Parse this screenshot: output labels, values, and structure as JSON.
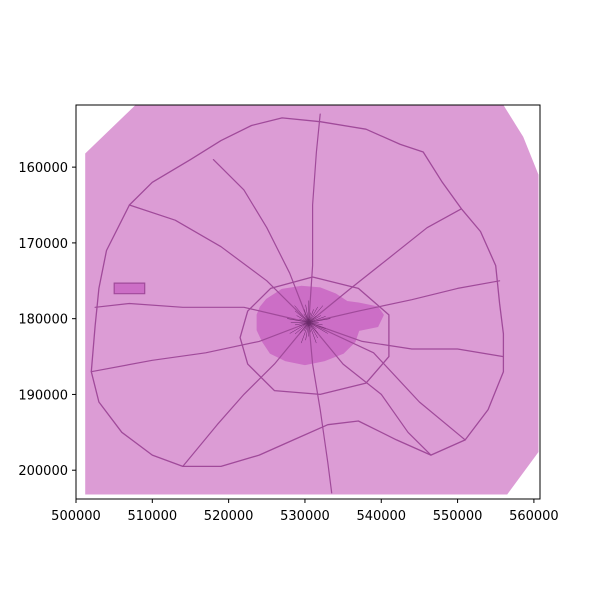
{
  "chart_data": {
    "type": "map",
    "title": "",
    "xlabel": "",
    "ylabel": "",
    "xlim": [
      500000,
      560800
    ],
    "ylim": [
      151800,
      203800
    ],
    "y_inverted": true,
    "grid": false,
    "legend": "none",
    "x_ticks": [
      500000,
      510000,
      520000,
      530000,
      540000,
      550000,
      560000
    ],
    "x_tick_labels": [
      "500000",
      "510000",
      "520000",
      "530000",
      "540000",
      "550000",
      "560000"
    ],
    "y_ticks": [
      160000,
      170000,
      180000,
      190000,
      200000
    ],
    "y_tick_labels": [
      "160000",
      "170000",
      "180000",
      "190000",
      "200000"
    ],
    "colors": {
      "region_fill": "#dc9cd5",
      "urban_core": "#cc6ec6",
      "roads": "#a04a9a",
      "center": "#6a2a6a"
    },
    "layers": [
      {
        "name": "study-area",
        "kind": "polygon",
        "points": [
          [
            501200,
            158200
          ],
          [
            507800,
            151800
          ],
          [
            556000,
            151800
          ],
          [
            558600,
            156000
          ],
          [
            560600,
            161000
          ],
          [
            560600,
            197600
          ],
          [
            556500,
            203200
          ],
          [
            501200,
            203200
          ]
        ]
      },
      {
        "name": "urban-core",
        "kind": "polygon",
        "points": [
          [
            525000,
            177500
          ],
          [
            527000,
            176200
          ],
          [
            529500,
            175800
          ],
          [
            532000,
            176000
          ],
          [
            534000,
            176800
          ],
          [
            535500,
            177800
          ],
          [
            537000,
            178000
          ],
          [
            539500,
            178500
          ],
          [
            540200,
            179500
          ],
          [
            539500,
            181000
          ],
          [
            537000,
            181500
          ],
          [
            536500,
            183000
          ],
          [
            535000,
            184500
          ],
          [
            532500,
            185500
          ],
          [
            530000,
            186000
          ],
          [
            527500,
            185500
          ],
          [
            525500,
            184500
          ],
          [
            524500,
            183000
          ],
          [
            523800,
            181500
          ],
          [
            523800,
            179500
          ],
          [
            524200,
            178500
          ]
        ]
      },
      {
        "name": "orbital-ring",
        "kind": "line",
        "closed": true,
        "points": [
          [
            504000,
            171000
          ],
          [
            507000,
            165000
          ],
          [
            510000,
            162000
          ],
          [
            515000,
            159000
          ],
          [
            519000,
            156500
          ],
          [
            523000,
            154500
          ],
          [
            527000,
            153500
          ],
          [
            532000,
            154000
          ],
          [
            538000,
            155000
          ],
          [
            542500,
            157000
          ],
          [
            545500,
            158000
          ],
          [
            548000,
            162000
          ],
          [
            550500,
            165500
          ],
          [
            553000,
            168500
          ],
          [
            555000,
            173000
          ],
          [
            555500,
            178000
          ],
          [
            556000,
            182000
          ],
          [
            556000,
            187000
          ],
          [
            554000,
            192000
          ],
          [
            551000,
            196000
          ],
          [
            546500,
            198000
          ],
          [
            542000,
            196000
          ],
          [
            537000,
            193500
          ],
          [
            533000,
            194000
          ],
          [
            528500,
            196000
          ],
          [
            524000,
            198000
          ],
          [
            519000,
            199500
          ],
          [
            514000,
            199500
          ],
          [
            510000,
            198000
          ],
          [
            506000,
            195000
          ],
          [
            503000,
            191000
          ],
          [
            502000,
            187000
          ],
          [
            502500,
            181000
          ],
          [
            503000,
            176000
          ]
        ]
      },
      {
        "name": "radial-roads",
        "kind": "lines",
        "paths": [
          [
            [
              530500,
              180500
            ],
            [
              528000,
              174000
            ],
            [
              525000,
              168000
            ],
            [
              522000,
              163000
            ],
            [
              518000,
              159000
            ]
          ],
          [
            [
              530500,
              180500
            ],
            [
              531000,
              173000
            ],
            [
              531000,
              165000
            ],
            [
              531500,
              158000
            ],
            [
              532000,
              153000
            ]
          ],
          [
            [
              530500,
              180500
            ],
            [
              536000,
              176000
            ],
            [
              541000,
              172000
            ],
            [
              546000,
              168000
            ],
            [
              550500,
              165500
            ]
          ],
          [
            [
              530500,
              180500
            ],
            [
              537000,
              179000
            ],
            [
              544000,
              177500
            ],
            [
              550000,
              176000
            ],
            [
              555500,
              175000
            ]
          ],
          [
            [
              530500,
              180500
            ],
            [
              537500,
              183000
            ],
            [
              544000,
              184000
            ],
            [
              550000,
              184000
            ],
            [
              556000,
              185000
            ]
          ],
          [
            [
              530500,
              180500
            ],
            [
              535000,
              186000
            ],
            [
              540000,
              190000
            ],
            [
              543500,
              195000
            ],
            [
              546500,
              198000
            ]
          ],
          [
            [
              530500,
              180500
            ],
            [
              531000,
              186000
            ],
            [
              532000,
              192000
            ],
            [
              533000,
              199000
            ],
            [
              533500,
              203000
            ]
          ],
          [
            [
              530500,
              180500
            ],
            [
              526000,
              186000
            ],
            [
              522000,
              190000
            ],
            [
              518500,
              194000
            ],
            [
              514000,
              199500
            ]
          ],
          [
            [
              530500,
              180500
            ],
            [
              524000,
              183000
            ],
            [
              517000,
              184500
            ],
            [
              510000,
              185500
            ],
            [
              502000,
              187000
            ]
          ],
          [
            [
              530500,
              180500
            ],
            [
              522000,
              178500
            ],
            [
              514000,
              178500
            ],
            [
              507000,
              178000
            ],
            [
              502500,
              178500
            ]
          ],
          [
            [
              530500,
              180500
            ],
            [
              525000,
              175000
            ],
            [
              519000,
              170500
            ],
            [
              513000,
              167000
            ],
            [
              507000,
              165000
            ]
          ],
          [
            [
              530500,
              180500
            ],
            [
              539000,
              184500
            ],
            [
              545000,
              191000
            ],
            [
              551000,
              196000
            ]
          ]
        ]
      },
      {
        "name": "inner-ring",
        "kind": "line",
        "closed": true,
        "points": [
          [
            522500,
            179000
          ],
          [
            525500,
            176000
          ],
          [
            531000,
            174500
          ],
          [
            537000,
            176000
          ],
          [
            541000,
            179500
          ],
          [
            541000,
            185000
          ],
          [
            538000,
            188500
          ],
          [
            532000,
            190000
          ],
          [
            526000,
            189500
          ],
          [
            522500,
            186000
          ],
          [
            521500,
            182500
          ]
        ]
      },
      {
        "name": "airport-outline",
        "kind": "polygon",
        "points": [
          [
            505000,
            175300
          ],
          [
            509000,
            175300
          ],
          [
            509000,
            176700
          ],
          [
            505000,
            176700
          ]
        ]
      }
    ]
  }
}
